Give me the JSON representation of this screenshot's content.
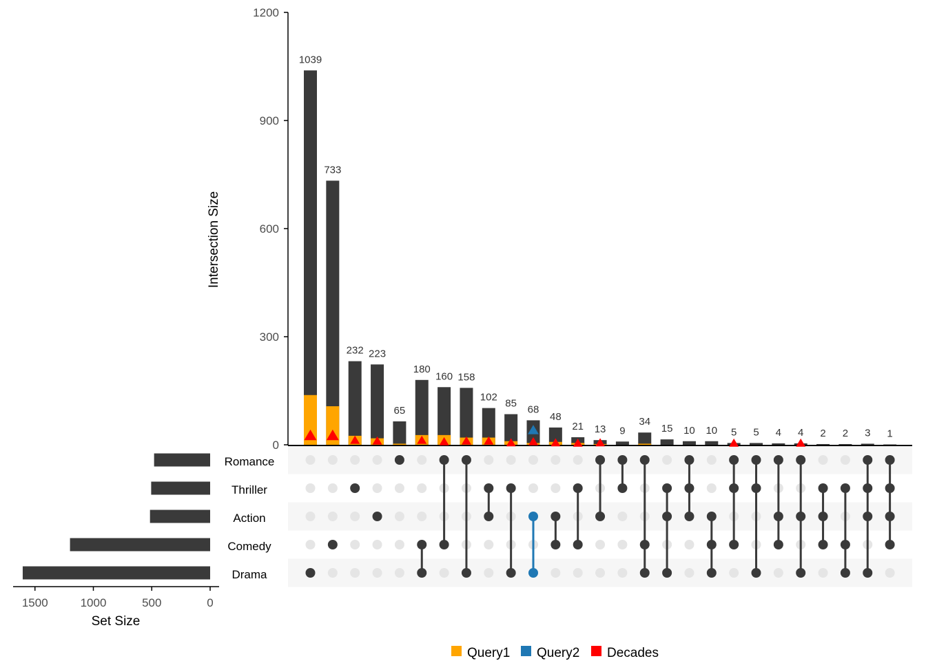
{
  "chart_data": {
    "type": "bar",
    "subtype": "upset",
    "ylabel": "Intersection Size",
    "ylim": [
      0,
      1200
    ],
    "yticks": [
      "0",
      "300",
      "600",
      "900",
      "1200"
    ],
    "set_size_label": "Set Size",
    "set_size_ticks": [
      "1500",
      "1000",
      "500",
      "0"
    ],
    "set_size_lim": [
      0,
      1650
    ],
    "sets": [
      {
        "name": "Romance",
        "size": 480
      },
      {
        "name": "Thriller",
        "size": 505
      },
      {
        "name": "Action",
        "size": 515
      },
      {
        "name": "Comedy",
        "size": 1200
      },
      {
        "name": "Drama",
        "size": 1605
      }
    ],
    "intersections": [
      {
        "sets": [
          "Drama"
        ],
        "size": 1039,
        "query1": 138,
        "decades": 25
      },
      {
        "sets": [
          "Comedy"
        ],
        "size": 733,
        "query1": 107,
        "decades": 25
      },
      {
        "sets": [
          "Thriller"
        ],
        "size": 232,
        "query1": 25,
        "decades": 12
      },
      {
        "sets": [
          "Action"
        ],
        "size": 223,
        "query1": 18,
        "decades": 10
      },
      {
        "sets": [
          "Romance"
        ],
        "size": 65,
        "query1": 3
      },
      {
        "sets": [
          "Comedy",
          "Drama"
        ],
        "size": 180,
        "query1": 27,
        "decades": 12
      },
      {
        "sets": [
          "Romance",
          "Comedy"
        ],
        "size": 160,
        "query1": 27,
        "decades": 8
      },
      {
        "sets": [
          "Romance",
          "Drama"
        ],
        "size": 158,
        "query1": 20,
        "decades": 10
      },
      {
        "sets": [
          "Thriller",
          "Action"
        ],
        "size": 102,
        "query1": 20,
        "decades": 10
      },
      {
        "sets": [
          "Thriller",
          "Drama"
        ],
        "size": 85,
        "query1": 10,
        "decades": 5
      },
      {
        "sets": [
          "Action",
          "Drama"
        ],
        "size": 68,
        "query1": 5,
        "decades": 8,
        "query2": true,
        "query2_value": 40
      },
      {
        "sets": [
          "Action",
          "Comedy"
        ],
        "size": 48,
        "query1": 8,
        "decades": 5
      },
      {
        "sets": [
          "Thriller",
          "Comedy"
        ],
        "size": 21,
        "query1": 5,
        "decades": 4
      },
      {
        "sets": [
          "Romance",
          "Action"
        ],
        "size": 13,
        "query1": 2,
        "decades": 5
      },
      {
        "sets": [
          "Romance",
          "Thriller"
        ],
        "size": 9,
        "query1": 0
      },
      {
        "sets": [
          "Romance",
          "Comedy",
          "Drama"
        ],
        "size": 34,
        "query1": 3
      },
      {
        "sets": [
          "Thriller",
          "Action",
          "Drama"
        ],
        "size": 15,
        "query1": 0
      },
      {
        "sets": [
          "Romance",
          "Thriller",
          "Action"
        ],
        "size": 10,
        "query1": 0
      },
      {
        "sets": [
          "Action",
          "Comedy",
          "Drama"
        ],
        "size": 10,
        "query1": 0
      },
      {
        "sets": [
          "Romance",
          "Thriller",
          "Comedy"
        ],
        "size": 5,
        "query1": 0,
        "decades": 4
      },
      {
        "sets": [
          "Romance",
          "Thriller",
          "Drama"
        ],
        "size": 5,
        "query1": 0
      },
      {
        "sets": [
          "Romance",
          "Action",
          "Comedy"
        ],
        "size": 4,
        "query1": 0
      },
      {
        "sets": [
          "Romance",
          "Action",
          "Drama"
        ],
        "size": 4,
        "query1": 0,
        "decades": 4
      },
      {
        "sets": [
          "Thriller",
          "Action",
          "Comedy"
        ],
        "size": 2,
        "query1": 0
      },
      {
        "sets": [
          "Thriller",
          "Comedy",
          "Drama"
        ],
        "size": 2,
        "query1": 0
      },
      {
        "sets": [
          "Romance",
          "Thriller",
          "Action",
          "Drama"
        ],
        "size": 3,
        "query1": 0
      },
      {
        "sets": [
          "Romance",
          "Thriller",
          "Action",
          "Comedy"
        ],
        "size": 1,
        "query1": 0
      }
    ],
    "legend": {
      "position": "bottom-center",
      "entries": [
        {
          "label": "Query1",
          "color": "#FFA500"
        },
        {
          "label": "Query2",
          "color": "#1F78B4"
        },
        {
          "label": "Decades",
          "color": "#FF0000"
        }
      ]
    },
    "colors": {
      "bar": "#3A3A3A",
      "matrix_active": "#3A3A3A",
      "matrix_inactive": "#E5E5E5",
      "stripe": "#F6F6F6",
      "query1": "#FFA500",
      "query2": "#1F78B4",
      "decades": "#FF0000"
    }
  }
}
